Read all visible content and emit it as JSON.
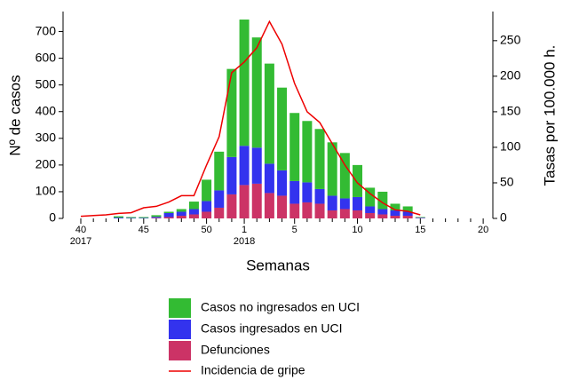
{
  "chart_data": {
    "type": "bar",
    "ylabel": "Nº de casos",
    "y2label": "Tasas por 100.000 h.",
    "xlabel": "Semanas",
    "categories": [
      "40",
      null,
      null,
      null,
      null,
      "45",
      null,
      null,
      null,
      null,
      "50",
      null,
      null,
      "1",
      null,
      null,
      null,
      "5",
      null,
      null,
      null,
      null,
      "10",
      null,
      null,
      null,
      null,
      "15",
      null,
      null,
      null,
      null,
      "20"
    ],
    "year_labels": [
      "2017",
      "2018"
    ],
    "stacked": true,
    "series": [
      {
        "name": "Casos no ingresados en UCI",
        "color": "#33bb33",
        "values": [
          0,
          0,
          0,
          5,
          3,
          3,
          6,
          5,
          10,
          28,
          80,
          145,
          330,
          473,
          413,
          375,
          310,
          255,
          230,
          225,
          200,
          170,
          120,
          70,
          65,
          25,
          20,
          2,
          0,
          0,
          0,
          0,
          0
        ]
      },
      {
        "name": "Casos ingresados en UCI",
        "color": "#3333ee",
        "values": [
          0,
          0,
          0,
          3,
          2,
          2,
          4,
          15,
          15,
          20,
          40,
          65,
          140,
          147,
          135,
          110,
          95,
          85,
          75,
          55,
          55,
          40,
          50,
          25,
          20,
          20,
          15,
          2,
          0,
          0,
          0,
          0,
          0
        ]
      },
      {
        "name": "Defunciones",
        "color": "#cc3366",
        "values": [
          0,
          0,
          0,
          0,
          0,
          0,
          2,
          5,
          10,
          15,
          25,
          40,
          90,
          125,
          130,
          95,
          85,
          55,
          60,
          55,
          30,
          35,
          30,
          20,
          15,
          10,
          10,
          1,
          0,
          0,
          0,
          0,
          0
        ]
      },
      {
        "name": "Incidencia de gripe",
        "type": "line",
        "axis": "y2",
        "color": "#ee0000",
        "values": [
          3,
          4,
          5,
          7,
          8,
          15,
          17,
          23,
          32,
          32,
          75,
          115,
          205,
          220,
          240,
          277,
          245,
          190,
          150,
          135,
          105,
          75,
          50,
          35,
          22,
          12,
          10,
          5,
          null,
          null,
          null,
          null,
          null
        ]
      }
    ],
    "ylim": [
      0,
      775
    ],
    "yticks": [
      0,
      100,
      200,
      300,
      400,
      500,
      600,
      700
    ],
    "y2lim": [
      0,
      291
    ],
    "y2ticks": [
      0,
      50,
      100,
      150,
      200,
      250
    ]
  }
}
